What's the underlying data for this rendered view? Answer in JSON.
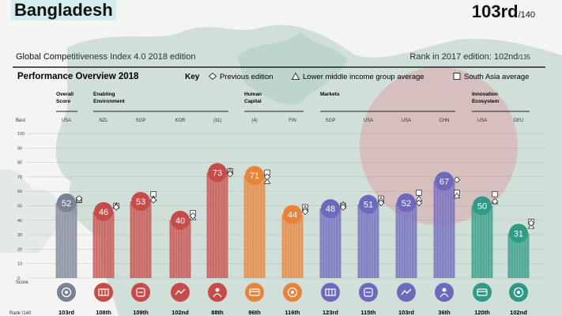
{
  "header": {
    "country": "Bangladesh",
    "rank": "103rd",
    "rank_total": "/140",
    "subtitle": "Global Competitiveness Index 4.0 2018 edition",
    "prev_rank_label": "Rank in 2017 edition: 102nd",
    "prev_rank_total": "/135"
  },
  "overview": {
    "title": "Performance Overview 2018",
    "key_label": "Key",
    "legend": [
      "Previous edition",
      "Lower middle income group average",
      "South Asia average"
    ]
  },
  "row_labels": {
    "best": "Best",
    "score": "Score",
    "rank": "Rank /140"
  },
  "colors": {
    "red": "#c74b48",
    "orange": "#e9833a",
    "purple": "#6d69bd",
    "teal": "#2f9a85",
    "gray": "#7a8294",
    "green": "#006a4e",
    "flag_red": "#f42a41"
  },
  "chart_data": {
    "type": "bar",
    "title": "Performance Overview 2018",
    "ylim": [
      0,
      100
    ],
    "yticks": [
      0,
      10,
      20,
      30,
      40,
      50,
      60,
      70,
      80,
      90,
      100
    ],
    "groups": [
      {
        "label": "Overall Score",
        "columns": [
          0
        ]
      },
      {
        "label": "Enabling Environment",
        "columns": [
          1,
          2,
          3,
          4
        ]
      },
      {
        "label": "Human Capital",
        "columns": [
          5,
          6
        ]
      },
      {
        "label": "Markets",
        "columns": [
          7,
          8,
          9,
          10
        ]
      },
      {
        "label": "Innovation Ecosystem",
        "columns": [
          11,
          12
        ]
      }
    ],
    "best": [
      "USA",
      "NZL",
      "SGP",
      "KOR",
      "(31)",
      "(4)",
      "FIN",
      "SGP",
      "USA",
      "USA",
      "CHN",
      "USA",
      "DEU"
    ],
    "values": [
      52,
      46,
      53,
      40,
      73,
      71,
      44,
      48,
      51,
      52,
      67,
      50,
      31
    ],
    "ranks": [
      "103rd",
      "108th",
      "109th",
      "102nd",
      "88th",
      "96th",
      "116th",
      "123rd",
      "115th",
      "103rd",
      "36th",
      "120th",
      "102nd"
    ],
    "bar_colors": [
      "gray",
      "red",
      "red",
      "red",
      "red",
      "orange",
      "orange",
      "purple",
      "purple",
      "purple",
      "purple",
      "teal",
      "teal"
    ],
    "icons": [
      "target-icon",
      "institutions-icon",
      "infrastructure-icon",
      "ict-icon",
      "macroeconomic-icon",
      "health-icon",
      "skills-icon",
      "product-market-icon",
      "labour-market-icon",
      "financial-system-icon",
      "market-size-icon",
      "business-dynamism-icon",
      "innovation-icon"
    ],
    "previous_edition": [
      55,
      49,
      54,
      43,
      72,
      70,
      46,
      49,
      52,
      52,
      68,
      53,
      38
    ],
    "lower_middle_income_avg": [
      54,
      50,
      55,
      42,
      74,
      67,
      48,
      51,
      54,
      55,
      57,
      53,
      36
    ],
    "south_asia_avg": [
      54,
      50,
      58,
      45,
      74,
      73,
      49,
      50,
      55,
      59,
      59,
      58,
      39
    ]
  }
}
